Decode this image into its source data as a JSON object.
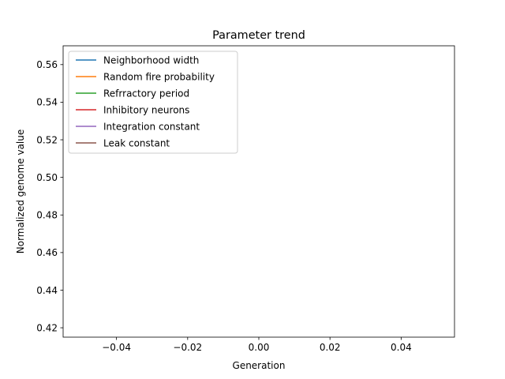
{
  "chart_data": {
    "type": "line",
    "title": "Parameter trend",
    "xlabel": "Generation",
    "ylabel": "Normalized genome value",
    "xlim": [
      -0.055,
      0.055
    ],
    "ylim": [
      0.415,
      0.57
    ],
    "x_ticks": [
      -0.04,
      -0.02,
      0.0,
      0.02,
      0.04
    ],
    "x_tick_labels": [
      "−0.04",
      "−0.02",
      "0.00",
      "0.02",
      "0.04"
    ],
    "y_ticks": [
      0.42,
      0.44,
      0.46,
      0.48,
      0.5,
      0.52,
      0.54,
      0.56
    ],
    "y_tick_labels": [
      "0.42",
      "0.44",
      "0.46",
      "0.48",
      "0.50",
      "0.52",
      "0.54",
      "0.56"
    ],
    "grid": false,
    "legend_position": "upper-left",
    "series": [
      {
        "name": "Neighborhood width",
        "color": "#1f77b4",
        "x": [],
        "y": []
      },
      {
        "name": "Random fire probability",
        "color": "#ff7f0e",
        "x": [],
        "y": []
      },
      {
        "name": "Refrractory period",
        "color": "#2ca02c",
        "x": [],
        "y": []
      },
      {
        "name": "Inhibitory neurons",
        "color": "#d62728",
        "x": [],
        "y": []
      },
      {
        "name": "Integration constant",
        "color": "#9467bd",
        "x": [],
        "y": []
      },
      {
        "name": "Leak constant",
        "color": "#8c564b",
        "x": [],
        "y": []
      }
    ]
  }
}
